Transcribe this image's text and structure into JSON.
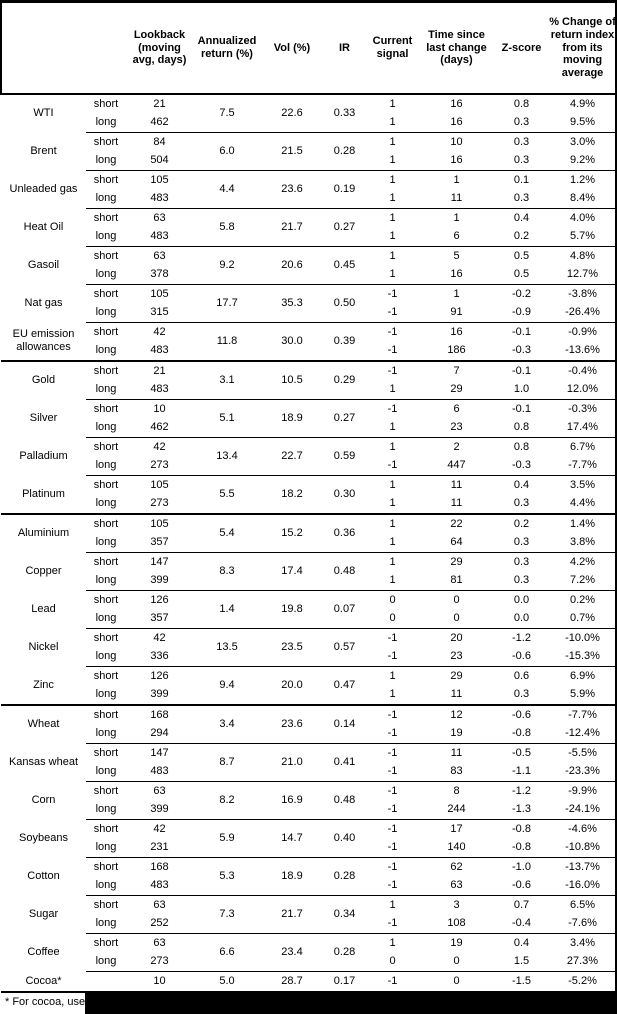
{
  "table": {
    "column_headers": [
      "Lookback (moving avg, days)",
      "Annualized return (%)",
      "Vol (%)",
      "IR",
      "Current signal",
      "Time since last change (days)",
      "Z-score",
      "% Change of return index from its moving average"
    ],
    "commodities": [
      {
        "name": "WTI",
        "thick_top": false,
        "annualized_return": "7.5",
        "vol": "22.6",
        "ir": "0.33",
        "rows": [
          {
            "term": "short",
            "lookback": "21",
            "signal": "1",
            "time_since_change": "16",
            "z_score": "0.8",
            "pct_change": "4.9%"
          },
          {
            "term": "long",
            "lookback": "462",
            "signal": "1",
            "time_since_change": "16",
            "z_score": "0.3",
            "pct_change": "9.5%"
          }
        ]
      },
      {
        "name": "Brent",
        "thick_top": false,
        "annualized_return": "6.0",
        "vol": "21.5",
        "ir": "0.28",
        "rows": [
          {
            "term": "short",
            "lookback": "84",
            "signal": "1",
            "time_since_change": "10",
            "z_score": "0.3",
            "pct_change": "3.0%"
          },
          {
            "term": "long",
            "lookback": "504",
            "signal": "1",
            "time_since_change": "16",
            "z_score": "0.3",
            "pct_change": "9.2%"
          }
        ]
      },
      {
        "name": "Unleaded gas",
        "thick_top": false,
        "annualized_return": "4.4",
        "vol": "23.6",
        "ir": "0.19",
        "rows": [
          {
            "term": "short",
            "lookback": "105",
            "signal": "1",
            "time_since_change": "1",
            "z_score": "0.1",
            "pct_change": "1.2%"
          },
          {
            "term": "long",
            "lookback": "483",
            "signal": "1",
            "time_since_change": "11",
            "z_score": "0.3",
            "pct_change": "8.4%"
          }
        ]
      },
      {
        "name": "Heat Oil",
        "thick_top": false,
        "annualized_return": "5.8",
        "vol": "21.7",
        "ir": "0.27",
        "rows": [
          {
            "term": "short",
            "lookback": "63",
            "signal": "1",
            "time_since_change": "1",
            "z_score": "0.4",
            "pct_change": "4.0%"
          },
          {
            "term": "long",
            "lookback": "483",
            "signal": "1",
            "time_since_change": "6",
            "z_score": "0.2",
            "pct_change": "5.7%"
          }
        ]
      },
      {
        "name": "Gasoil",
        "thick_top": false,
        "annualized_return": "9.2",
        "vol": "20.6",
        "ir": "0.45",
        "rows": [
          {
            "term": "short",
            "lookback": "63",
            "signal": "1",
            "time_since_change": "5",
            "z_score": "0.5",
            "pct_change": "4.8%"
          },
          {
            "term": "long",
            "lookback": "378",
            "signal": "1",
            "time_since_change": "16",
            "z_score": "0.5",
            "pct_change": "12.7%"
          }
        ]
      },
      {
        "name": "Nat gas",
        "thick_top": false,
        "annualized_return": "17.7",
        "vol": "35.3",
        "ir": "0.50",
        "rows": [
          {
            "term": "short",
            "lookback": "105",
            "signal": "-1",
            "time_since_change": "1",
            "z_score": "-0.2",
            "pct_change": "-3.8%"
          },
          {
            "term": "long",
            "lookback": "315",
            "signal": "-1",
            "time_since_change": "91",
            "z_score": "-0.9",
            "pct_change": "-26.4%"
          }
        ]
      },
      {
        "name": "EU emission allowances",
        "thick_top": false,
        "annualized_return": "11.8",
        "vol": "30.0",
        "ir": "0.39",
        "rows": [
          {
            "term": "short",
            "lookback": "42",
            "signal": "-1",
            "time_since_change": "16",
            "z_score": "-0.1",
            "pct_change": "-0.9%"
          },
          {
            "term": "long",
            "lookback": "483",
            "signal": "-1",
            "time_since_change": "186",
            "z_score": "-0.3",
            "pct_change": "-13.6%"
          }
        ]
      },
      {
        "name": "Gold",
        "thick_top": true,
        "annualized_return": "3.1",
        "vol": "10.5",
        "ir": "0.29",
        "rows": [
          {
            "term": "short",
            "lookback": "21",
            "signal": "-1",
            "time_since_change": "7",
            "z_score": "-0.1",
            "pct_change": "-0.4%"
          },
          {
            "term": "long",
            "lookback": "483",
            "signal": "1",
            "time_since_change": "29",
            "z_score": "1.0",
            "pct_change": "12.0%"
          }
        ]
      },
      {
        "name": "Silver",
        "thick_top": false,
        "annualized_return": "5.1",
        "vol": "18.9",
        "ir": "0.27",
        "rows": [
          {
            "term": "short",
            "lookback": "10",
            "signal": "-1",
            "time_since_change": "6",
            "z_score": "-0.1",
            "pct_change": "-0.3%"
          },
          {
            "term": "long",
            "lookback": "462",
            "signal": "1",
            "time_since_change": "23",
            "z_score": "0.8",
            "pct_change": "17.4%"
          }
        ]
      },
      {
        "name": "Palladium",
        "thick_top": false,
        "annualized_return": "13.4",
        "vol": "22.7",
        "ir": "0.59",
        "rows": [
          {
            "term": "short",
            "lookback": "42",
            "signal": "1",
            "time_since_change": "2",
            "z_score": "0.8",
            "pct_change": "6.7%"
          },
          {
            "term": "long",
            "lookback": "273",
            "signal": "-1",
            "time_since_change": "447",
            "z_score": "-0.3",
            "pct_change": "-7.7%"
          }
        ]
      },
      {
        "name": "Platinum",
        "thick_top": false,
        "annualized_return": "5.5",
        "vol": "18.2",
        "ir": "0.30",
        "rows": [
          {
            "term": "short",
            "lookback": "105",
            "signal": "1",
            "time_since_change": "11",
            "z_score": "0.4",
            "pct_change": "3.5%"
          },
          {
            "term": "long",
            "lookback": "273",
            "signal": "1",
            "time_since_change": "11",
            "z_score": "0.3",
            "pct_change": "4.4%"
          }
        ]
      },
      {
        "name": "Aluminium",
        "thick_top": true,
        "annualized_return": "5.4",
        "vol": "15.2",
        "ir": "0.36",
        "rows": [
          {
            "term": "short",
            "lookback": "105",
            "signal": "1",
            "time_since_change": "22",
            "z_score": "0.2",
            "pct_change": "1.4%"
          },
          {
            "term": "long",
            "lookback": "357",
            "signal": "1",
            "time_since_change": "64",
            "z_score": "0.3",
            "pct_change": "3.8%"
          }
        ]
      },
      {
        "name": "Copper",
        "thick_top": false,
        "annualized_return": "8.3",
        "vol": "17.4",
        "ir": "0.48",
        "rows": [
          {
            "term": "short",
            "lookback": "147",
            "signal": "1",
            "time_since_change": "29",
            "z_score": "0.3",
            "pct_change": "4.2%"
          },
          {
            "term": "long",
            "lookback": "399",
            "signal": "1",
            "time_since_change": "81",
            "z_score": "0.3",
            "pct_change": "7.2%"
          }
        ]
      },
      {
        "name": "Lead",
        "thick_top": false,
        "annualized_return": "1.4",
        "vol": "19.8",
        "ir": "0.07",
        "rows": [
          {
            "term": "short",
            "lookback": "126",
            "signal": "0",
            "time_since_change": "0",
            "z_score": "0.0",
            "pct_change": "0.2%"
          },
          {
            "term": "long",
            "lookback": "357",
            "signal": "0",
            "time_since_change": "0",
            "z_score": "0.0",
            "pct_change": "0.7%"
          }
        ]
      },
      {
        "name": "Nickel",
        "thick_top": false,
        "annualized_return": "13.5",
        "vol": "23.5",
        "ir": "0.57",
        "rows": [
          {
            "term": "short",
            "lookback": "42",
            "signal": "-1",
            "time_since_change": "20",
            "z_score": "-1.2",
            "pct_change": "-10.0%"
          },
          {
            "term": "long",
            "lookback": "336",
            "signal": "-1",
            "time_since_change": "23",
            "z_score": "-0.6",
            "pct_change": "-15.3%"
          }
        ]
      },
      {
        "name": "Zinc",
        "thick_top": false,
        "annualized_return": "9.4",
        "vol": "20.0",
        "ir": "0.47",
        "rows": [
          {
            "term": "short",
            "lookback": "126",
            "signal": "1",
            "time_since_change": "29",
            "z_score": "0.6",
            "pct_change": "6.9%"
          },
          {
            "term": "long",
            "lookback": "399",
            "signal": "1",
            "time_since_change": "11",
            "z_score": "0.3",
            "pct_change": "5.9%"
          }
        ]
      },
      {
        "name": "Wheat",
        "thick_top": true,
        "annualized_return": "3.4",
        "vol": "23.6",
        "ir": "0.14",
        "rows": [
          {
            "term": "short",
            "lookback": "168",
            "signal": "-1",
            "time_since_change": "12",
            "z_score": "-0.6",
            "pct_change": "-7.7%"
          },
          {
            "term": "long",
            "lookback": "294",
            "signal": "-1",
            "time_since_change": "19",
            "z_score": "-0.8",
            "pct_change": "-12.4%"
          }
        ]
      },
      {
        "name": "Kansas wheat",
        "thick_top": false,
        "annualized_return": "8.7",
        "vol": "21.0",
        "ir": "0.41",
        "rows": [
          {
            "term": "short",
            "lookback": "147",
            "signal": "-1",
            "time_since_change": "11",
            "z_score": "-0.5",
            "pct_change": "-5.5%"
          },
          {
            "term": "long",
            "lookback": "483",
            "signal": "-1",
            "time_since_change": "83",
            "z_score": "-1.1",
            "pct_change": "-23.3%"
          }
        ]
      },
      {
        "name": "Corn",
        "thick_top": false,
        "annualized_return": "8.2",
        "vol": "16.9",
        "ir": "0.48",
        "rows": [
          {
            "term": "short",
            "lookback": "63",
            "signal": "-1",
            "time_since_change": "8",
            "z_score": "-1.2",
            "pct_change": "-9.9%"
          },
          {
            "term": "long",
            "lookback": "399",
            "signal": "-1",
            "time_since_change": "244",
            "z_score": "-1.3",
            "pct_change": "-24.1%"
          }
        ]
      },
      {
        "name": "Soybeans",
        "thick_top": false,
        "annualized_return": "5.9",
        "vol": "14.7",
        "ir": "0.40",
        "rows": [
          {
            "term": "short",
            "lookback": "42",
            "signal": "-1",
            "time_since_change": "17",
            "z_score": "-0.8",
            "pct_change": "-4.6%"
          },
          {
            "term": "long",
            "lookback": "231",
            "signal": "-1",
            "time_since_change": "140",
            "z_score": "-0.8",
            "pct_change": "-10.8%"
          }
        ]
      },
      {
        "name": "Cotton",
        "thick_top": false,
        "annualized_return": "5.3",
        "vol": "18.9",
        "ir": "0.28",
        "rows": [
          {
            "term": "short",
            "lookback": "168",
            "signal": "-1",
            "time_since_change": "62",
            "z_score": "-1.0",
            "pct_change": "-13.7%"
          },
          {
            "term": "long",
            "lookback": "483",
            "signal": "-1",
            "time_since_change": "63",
            "z_score": "-0.6",
            "pct_change": "-16.0%"
          }
        ]
      },
      {
        "name": "Sugar",
        "thick_top": false,
        "annualized_return": "7.3",
        "vol": "21.7",
        "ir": "0.34",
        "rows": [
          {
            "term": "short",
            "lookback": "63",
            "signal": "1",
            "time_since_change": "3",
            "z_score": "0.7",
            "pct_change": "6.5%"
          },
          {
            "term": "long",
            "lookback": "252",
            "signal": "-1",
            "time_since_change": "108",
            "z_score": "-0.4",
            "pct_change": "-7.6%"
          }
        ]
      },
      {
        "name": "Coffee",
        "thick_top": false,
        "annualized_return": "6.6",
        "vol": "23.4",
        "ir": "0.28",
        "rows": [
          {
            "term": "short",
            "lookback": "63",
            "signal": "1",
            "time_since_change": "19",
            "z_score": "0.4",
            "pct_change": "3.4%"
          },
          {
            "term": "long",
            "lookback": "273",
            "signal": "0",
            "time_since_change": "0",
            "z_score": "1.5",
            "pct_change": "27.3%"
          }
        ]
      },
      {
        "name": "Cocoa*",
        "thick_top": false,
        "annualized_return": "5.0",
        "vol": "28.7",
        "ir": "0.17",
        "rows": [
          {
            "term": "",
            "lookback": "10",
            "signal": "-1",
            "time_since_change": "0",
            "z_score": "-1.5",
            "pct_change": "-5.2%"
          }
        ]
      }
    ]
  },
  "footnote": {
    "visible_text": "* For cocoa, uses o"
  }
}
